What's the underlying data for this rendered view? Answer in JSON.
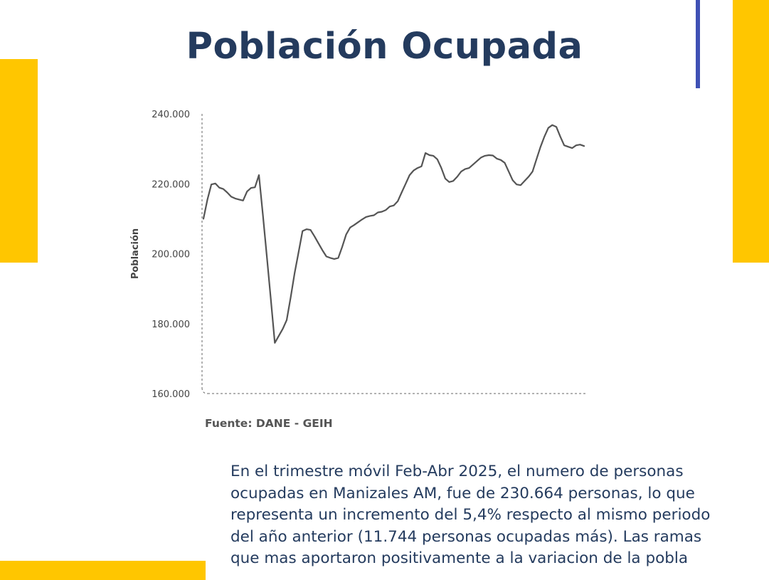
{
  "title": "Población Ocupada",
  "source": "Fuente: DANE - GEIH",
  "paragraph": "En el trimestre móvil Feb-Abr 2025, el numero de personas ocupadas en Manizales AM, fue de 230.664 personas, lo que representa un incremento del 5,4% respecto al mismo periodo del año anterior (11.744 personas ocupadas más). Las ramas que mas aportaron positivamente a la variacion de la pobla",
  "colors": {
    "accent_yellow": "#FFC600",
    "accent_blue": "#3F51B5",
    "title": "#243B5E",
    "line": "#555555"
  },
  "chart_data": {
    "type": "line",
    "title": "",
    "xlabel": "",
    "ylabel": "Población",
    "ylim": [
      160000,
      240000
    ],
    "yticks": [
      160000,
      180000,
      200000,
      220000,
      240000
    ],
    "ytick_labels": [
      "160.000",
      "180.000",
      "200.000",
      "220.000",
      "240.000"
    ],
    "grid": false,
    "series": [
      {
        "values": [
          210000,
          215500,
          219800,
          220100,
          218900,
          218500,
          217500,
          216300,
          215800,
          215500,
          215200,
          217800,
          218800,
          219000,
          222500,
          211000,
          199000,
          187000,
          174500,
          176500,
          178500,
          181000,
          187500,
          194500,
          200500,
          206500,
          207000,
          206800,
          205000,
          203000,
          201000,
          199200,
          198800,
          198500,
          198800,
          202000,
          205500,
          207500,
          208200,
          209000,
          209800,
          210500,
          210800,
          211000,
          211800,
          212000,
          212500,
          213500,
          213800,
          215000,
          217500,
          220000,
          222500,
          223800,
          224500,
          225000,
          228800,
          228200,
          228000,
          227000,
          224500,
          221500,
          220500,
          220800,
          222000,
          223500,
          224200,
          224500,
          225500,
          226500,
          227500,
          228000,
          228200,
          228100,
          227200,
          226800,
          226000,
          223500,
          221000,
          219800,
          219600,
          220800,
          222000,
          223500,
          227000,
          230500,
          233500,
          236000,
          236800,
          236300,
          233500,
          231000,
          230600,
          230200,
          231000,
          231200,
          230800
        ]
      }
    ]
  }
}
